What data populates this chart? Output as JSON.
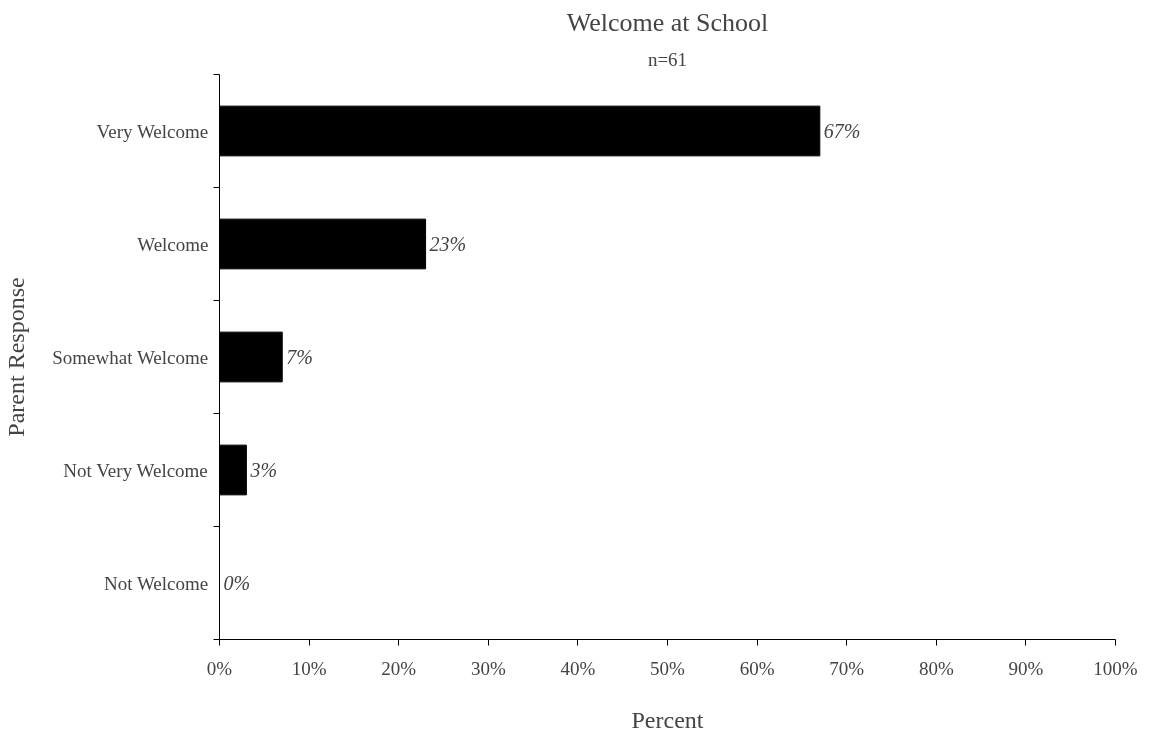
{
  "chart_data": {
    "type": "bar",
    "orientation": "horizontal",
    "title": "Welcome at School",
    "subtitle": "n=61",
    "xlabel": "Percent",
    "ylabel": "Parent Response",
    "categories": [
      "Very Welcome",
      "Welcome",
      "Somewhat Welcome",
      "Not Very Welcome",
      "Not Welcome"
    ],
    "values": [
      67,
      23,
      7,
      3,
      0
    ],
    "color": "#000000",
    "value_labels": [
      "67%",
      "23%",
      "7%",
      "3%",
      "0%"
    ],
    "xlim": [
      0,
      100
    ],
    "xticks": [
      {
        "value": 0,
        "label": "0%"
      },
      {
        "value": 10,
        "label": "10%"
      },
      {
        "value": 20,
        "label": "20%"
      },
      {
        "value": 30,
        "label": "30%"
      },
      {
        "value": 40,
        "label": "40%"
      },
      {
        "value": 50,
        "label": "50%"
      },
      {
        "value": 60,
        "label": "60%"
      },
      {
        "value": 70,
        "label": "70%"
      },
      {
        "value": 80,
        "label": "80%"
      },
      {
        "value": 90,
        "label": "90%"
      },
      {
        "value": 100,
        "label": "100%"
      }
    ],
    "grid": false
  }
}
